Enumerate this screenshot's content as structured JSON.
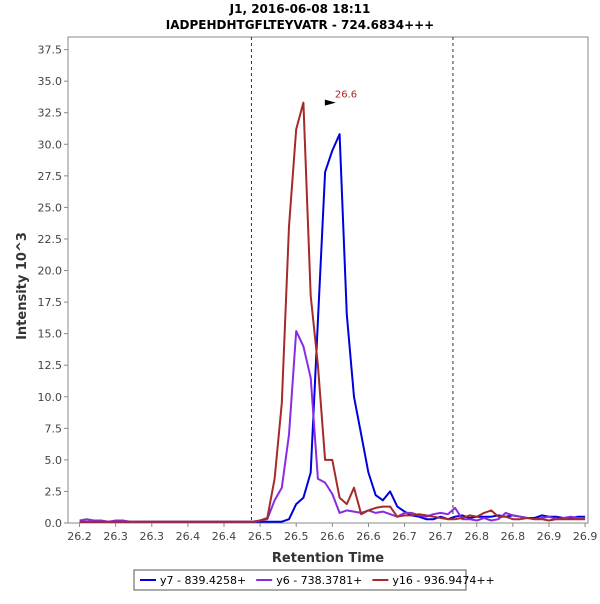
{
  "chart_data": {
    "type": "line",
    "title": "J1, 2016-06-08 18:11",
    "subtitle": "IADPEHDHTGFLTEYVATR - 724.6834+++",
    "xlabel": "Retention Time",
    "ylabel": "Intensity 10^3",
    "xlim": [
      26.224,
      26.944
    ],
    "ylim": [
      0,
      38.5
    ],
    "x_tick_values": [
      26.24,
      26.29,
      26.34,
      26.39,
      26.44,
      26.49,
      26.54,
      26.59,
      26.64,
      26.69,
      26.74,
      26.79,
      26.84,
      26.89,
      26.94
    ],
    "x_tick_labels": [
      "26.2",
      "26.3",
      "26.3",
      "26.4",
      "26.4",
      "26.5",
      "26.5",
      "26.6",
      "26.6",
      "26.7",
      "26.7",
      "26.8",
      "26.8",
      "26.9",
      "26.9"
    ],
    "y_ticks": [
      0,
      2.5,
      5,
      7.5,
      10,
      12.5,
      15,
      17.5,
      20,
      22.5,
      25,
      27.5,
      30,
      32.5,
      35,
      37.5
    ],
    "y_tick_labels": [
      "0.0",
      "2.5",
      "5.0",
      "7.5",
      "10.0",
      "12.5",
      "15.0",
      "17.5",
      "20.0",
      "22.5",
      "25.0",
      "27.5",
      "30.0",
      "32.5",
      "35.0",
      "37.5"
    ],
    "boundaries": [
      26.478,
      26.757
    ],
    "peak_annotation": {
      "x": 26.599,
      "y": 33.3,
      "label": "26.6",
      "color": "#a52a2a"
    },
    "x": [
      26.24,
      26.25,
      26.26,
      26.27,
      26.28,
      26.29,
      26.3,
      26.31,
      26.32,
      26.33,
      26.34,
      26.35,
      26.36,
      26.37,
      26.38,
      26.39,
      26.4,
      26.41,
      26.42,
      26.43,
      26.44,
      26.45,
      26.46,
      26.47,
      26.48,
      26.49,
      26.5,
      26.51,
      26.52,
      26.53,
      26.54,
      26.55,
      26.56,
      26.57,
      26.58,
      26.59,
      26.6,
      26.61,
      26.62,
      26.63,
      26.64,
      26.65,
      26.66,
      26.67,
      26.68,
      26.69,
      26.7,
      26.71,
      26.72,
      26.73,
      26.74,
      26.75,
      26.76,
      26.77,
      26.78,
      26.79,
      26.8,
      26.81,
      26.82,
      26.83,
      26.84,
      26.85,
      26.86,
      26.87,
      26.88,
      26.89,
      26.9,
      26.91,
      26.92,
      26.93,
      26.94
    ],
    "series": [
      {
        "name": "y7 - 839.4258+",
        "color": "#0000dd",
        "values": [
          0.1,
          0.1,
          0.1,
          0.1,
          0.1,
          0.1,
          0.1,
          0.1,
          0.1,
          0.1,
          0.1,
          0.1,
          0.1,
          0.1,
          0.1,
          0.1,
          0.1,
          0.1,
          0.1,
          0.1,
          0.1,
          0.1,
          0.1,
          0.1,
          0.1,
          0.1,
          0.1,
          0.1,
          0.1,
          0.3,
          1.5,
          2.0,
          4.0,
          16.0,
          27.8,
          29.5,
          30.8,
          16.5,
          10.0,
          7.0,
          4.0,
          2.2,
          1.8,
          2.5,
          1.3,
          0.9,
          0.6,
          0.5,
          0.3,
          0.3,
          0.5,
          0.3,
          0.5,
          0.6,
          0.4,
          0.5,
          0.5,
          0.5,
          0.6,
          0.5,
          0.6,
          0.5,
          0.4,
          0.4,
          0.6,
          0.5,
          0.5,
          0.4,
          0.4,
          0.5,
          0.5
        ]
      },
      {
        "name": "y6 - 738.3781+",
        "color": "#8a2be2",
        "values": [
          0.2,
          0.3,
          0.2,
          0.2,
          0.1,
          0.2,
          0.2,
          0.1,
          0.1,
          0.1,
          0.1,
          0.1,
          0.1,
          0.1,
          0.1,
          0.1,
          0.1,
          0.1,
          0.1,
          0.1,
          0.1,
          0.1,
          0.1,
          0.1,
          0.1,
          0.2,
          0.3,
          1.8,
          2.8,
          7.0,
          15.2,
          14.0,
          11.5,
          3.5,
          3.2,
          2.3,
          0.8,
          1.0,
          0.9,
          0.8,
          1.0,
          0.8,
          0.9,
          0.7,
          0.5,
          0.8,
          0.8,
          0.6,
          0.5,
          0.7,
          0.8,
          0.7,
          1.2,
          0.3,
          0.3,
          0.2,
          0.4,
          0.2,
          0.3,
          0.8,
          0.6,
          0.5,
          0.4,
          0.3,
          0.4,
          0.5,
          0.3,
          0.4,
          0.5,
          0.4,
          0.4
        ]
      },
      {
        "name": "y16 - 936.9474++",
        "color": "#a52a2a",
        "values": [
          0.1,
          0.1,
          0.1,
          0.1,
          0.1,
          0.1,
          0.1,
          0.1,
          0.1,
          0.1,
          0.1,
          0.1,
          0.1,
          0.1,
          0.1,
          0.1,
          0.1,
          0.1,
          0.1,
          0.1,
          0.1,
          0.1,
          0.1,
          0.1,
          0.1,
          0.2,
          0.4,
          3.5,
          9.5,
          23.5,
          31.2,
          33.3,
          18.0,
          12.5,
          5.0,
          5.0,
          2.0,
          1.5,
          2.8,
          0.7,
          1.0,
          1.2,
          1.3,
          1.3,
          0.5,
          0.6,
          0.6,
          0.7,
          0.6,
          0.5,
          0.4,
          0.3,
          0.3,
          0.4,
          0.6,
          0.5,
          0.8,
          1.0,
          0.5,
          0.5,
          0.3,
          0.3,
          0.4,
          0.3,
          0.3,
          0.2,
          0.3,
          0.3,
          0.3,
          0.3,
          0.3
        ]
      }
    ],
    "legend_position": "bottom-center"
  }
}
